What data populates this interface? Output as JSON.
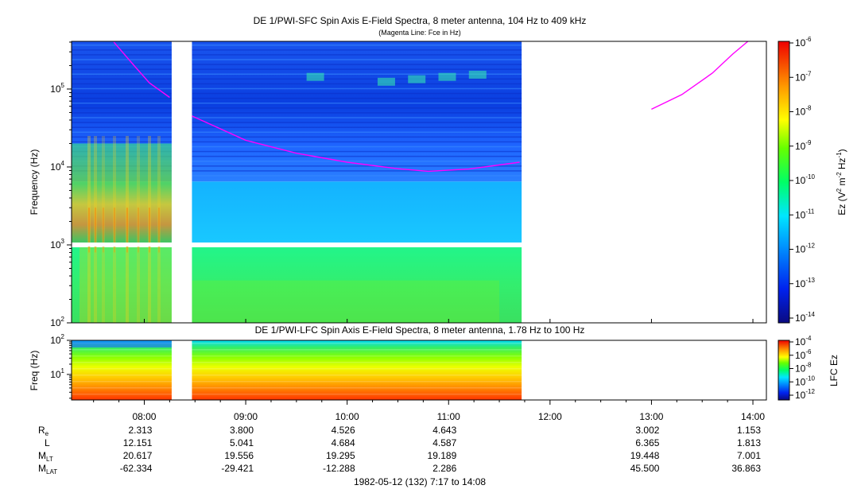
{
  "chart_data": [
    {
      "type": "heatmap",
      "title": "DE 1/PWI-SFC  Spin Axis E-Field Spectra, 8 meter antenna, 104 Hz to 409 kHz",
      "subtitle": "(Magenta Line: Fce in Hz)",
      "ylabel": "Frequency (Hz)",
      "y_scale": "log",
      "ylim": [
        100,
        409000
      ],
      "y_ticks": [
        {
          "value": 100,
          "base": "10",
          "exp": "2"
        },
        {
          "value": 1000,
          "base": "10",
          "exp": "3"
        },
        {
          "value": 10000,
          "base": "10",
          "exp": "4"
        },
        {
          "value": 100000,
          "base": "10",
          "exp": "5"
        }
      ],
      "x_range_hours": [
        7.283,
        14.133
      ],
      "data_end_hour": 11.72,
      "gaps_hours": [
        [
          8.27,
          8.47
        ]
      ],
      "colorbar": {
        "label_prefix": "Ez (V",
        "label_middle": " m",
        "label_middle2": " Hz",
        "label_suffix": ")",
        "label_sup1": "2",
        "label_sup2": "-2",
        "label_sup3": "-1",
        "scale": "log",
        "ticks": [
          {
            "base": "10",
            "exp": "-6"
          },
          {
            "base": "10",
            "exp": "-7"
          },
          {
            "base": "10",
            "exp": "-8"
          },
          {
            "base": "10",
            "exp": "-9"
          },
          {
            "base": "10",
            "exp": "-10"
          },
          {
            "base": "10",
            "exp": "-11"
          },
          {
            "base": "10",
            "exp": "-12"
          },
          {
            "base": "10",
            "exp": "-13"
          },
          {
            "base": "10",
            "exp": "-14"
          }
        ]
      },
      "fce_line": {
        "color": "#ff00ff",
        "segments": [
          [
            [
              7.7,
              400000
            ],
            [
              7.9,
              200000
            ],
            [
              8.05,
              120000
            ],
            [
              8.25,
              78000
            ]
          ],
          [
            [
              8.47,
              45000
            ],
            [
              9.0,
              22000
            ],
            [
              9.5,
              15000
            ],
            [
              10.0,
              11500
            ],
            [
              10.5,
              9500
            ],
            [
              10.8,
              8800
            ],
            [
              11.2,
              9400
            ],
            [
              11.7,
              11500
            ]
          ],
          [
            [
              13.0,
              55000
            ],
            [
              13.3,
              85000
            ],
            [
              13.6,
              160000
            ],
            [
              13.8,
              280000
            ],
            [
              13.95,
              420000
            ]
          ]
        ]
      }
    },
    {
      "type": "heatmap",
      "title": "DE 1/PWI-LFC  Spin Axis E-Field Spectra, 8 meter antenna, 1.78 Hz to 100 Hz",
      "ylabel": "Freq (Hz)",
      "y_scale": "log",
      "ylim": [
        1.78,
        100
      ],
      "y_ticks": [
        {
          "value": 100,
          "base": "10",
          "exp": "2"
        },
        {
          "value": 10,
          "base": "10",
          "exp": "1"
        }
      ],
      "colorbar": {
        "label": "LFC Ez",
        "scale": "log",
        "ticks": [
          {
            "base": "10",
            "exp": "-4"
          },
          {
            "base": "10",
            "exp": "-6"
          },
          {
            "base": "10",
            "exp": "-8"
          },
          {
            "base": "10",
            "exp": "-10"
          },
          {
            "base": "10",
            "exp": "-12"
          }
        ]
      }
    }
  ],
  "x_axis": {
    "tick_hours": [
      8,
      9,
      10,
      11,
      12,
      13,
      14
    ],
    "tick_labels": [
      "08:00",
      "09:00",
      "10:00",
      "11:00",
      "12:00",
      "13:00",
      "14:00"
    ]
  },
  "ephemeris": {
    "rows": [
      {
        "label": "R",
        "sub": "e",
        "values": [
          "2.313",
          "3.800",
          "4.526",
          "4.643",
          "",
          "3.002",
          "1.153"
        ]
      },
      {
        "label": "L",
        "sub": "",
        "values": [
          "12.151",
          "5.041",
          "4.684",
          "4.587",
          "",
          "6.365",
          "1.813"
        ]
      },
      {
        "label": "M",
        "sub": "LT",
        "values": [
          "20.617",
          "19.556",
          "19.295",
          "19.189",
          "",
          "19.448",
          "7.001"
        ]
      },
      {
        "label": "M",
        "sub": "LAT",
        "values": [
          "-62.334",
          "-29.421",
          "-12.288",
          "2.286",
          "",
          "45.500",
          "36.863"
        ]
      }
    ]
  },
  "footer": "1982-05-12 (132) 7:17 to 14:08"
}
